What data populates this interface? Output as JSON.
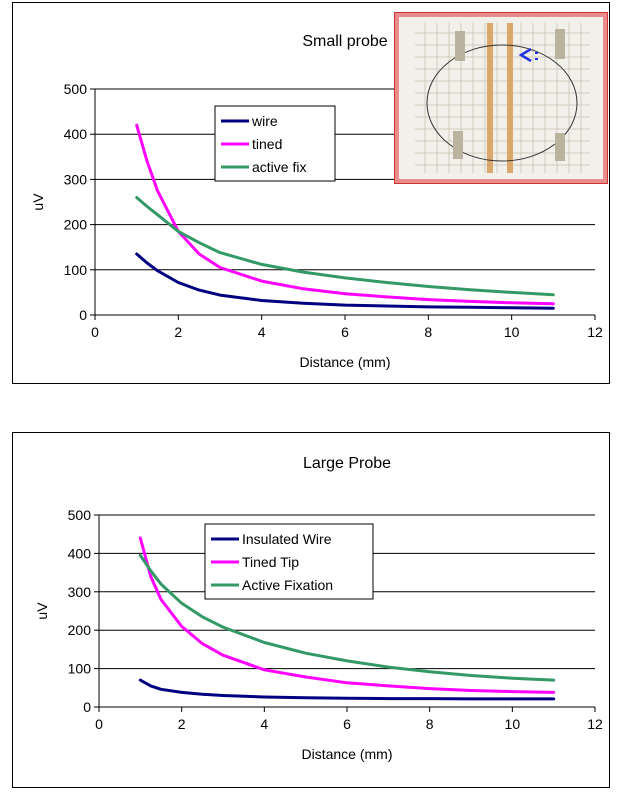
{
  "chart_data": [
    {
      "type": "line",
      "title": "Small probe",
      "xlabel": "Distance (mm)",
      "ylabel": "uV",
      "xlim": [
        0,
        12
      ],
      "ylim": [
        0,
        500
      ],
      "xticks": [
        "0",
        "2",
        "4",
        "6",
        "8",
        "10",
        "12"
      ],
      "yticks": [
        "0",
        "100",
        "200",
        "300",
        "400",
        "500"
      ],
      "grid": "horizontal",
      "legend": "upper-center",
      "series": [
        {
          "name": "wire",
          "color": "#000080",
          "x": [
            1,
            1.25,
            1.5,
            2,
            2.5,
            3,
            4,
            5,
            6,
            7,
            8,
            9,
            10,
            11
          ],
          "y": [
            135,
            115,
            98,
            72,
            55,
            44,
            32,
            26,
            22,
            20,
            18,
            17,
            16,
            15
          ]
        },
        {
          "name": "tined",
          "color": "#ff00ff",
          "x": [
            1,
            1.25,
            1.5,
            2,
            2.5,
            3,
            4,
            5,
            6,
            7,
            8,
            9,
            10,
            11
          ],
          "y": [
            420,
            340,
            275,
            185,
            135,
            105,
            75,
            58,
            47,
            40,
            34,
            30,
            27,
            25
          ]
        },
        {
          "name": "active fix",
          "color": "#339966",
          "x": [
            1,
            1.25,
            1.5,
            2,
            2.5,
            3,
            4,
            5,
            6,
            7,
            8,
            9,
            10,
            11
          ],
          "y": [
            260,
            240,
            222,
            185,
            160,
            138,
            112,
            95,
            82,
            72,
            63,
            56,
            50,
            45
          ]
        }
      ]
    },
    {
      "type": "line",
      "title": "Large Probe",
      "xlabel": "Distance (mm)",
      "ylabel": "uV",
      "xlim": [
        0,
        12
      ],
      "ylim": [
        0,
        500
      ],
      "xticks": [
        "0",
        "2",
        "4",
        "6",
        "8",
        "10",
        "12"
      ],
      "yticks": [
        "0",
        "100",
        "200",
        "300",
        "400",
        "500"
      ],
      "grid": "horizontal",
      "legend": "upper-center",
      "series": [
        {
          "name": "Insulated Wire",
          "color": "#000080",
          "x": [
            1,
            1.25,
            1.5,
            2,
            2.5,
            3,
            4,
            5,
            6,
            7,
            8,
            9,
            10,
            11
          ],
          "y": [
            70,
            55,
            46,
            38,
            33,
            30,
            26,
            24,
            23,
            22,
            22,
            21,
            21,
            21
          ]
        },
        {
          "name": "Tined Tip",
          "color": "#ff00ff",
          "x": [
            1,
            1.25,
            1.5,
            2,
            2.5,
            3,
            4,
            5,
            6,
            7,
            8,
            9,
            10,
            11
          ],
          "y": [
            440,
            340,
            280,
            210,
            165,
            135,
            97,
            78,
            63,
            55,
            48,
            43,
            40,
            38
          ]
        },
        {
          "name": "Active Fixation",
          "color": "#339966",
          "x": [
            1,
            1.25,
            1.5,
            2,
            2.5,
            3,
            4,
            5,
            6,
            7,
            8,
            9,
            10,
            11
          ],
          "y": [
            395,
            355,
            320,
            270,
            235,
            208,
            168,
            140,
            120,
            104,
            92,
            82,
            75,
            70
          ]
        }
      ]
    }
  ]
}
